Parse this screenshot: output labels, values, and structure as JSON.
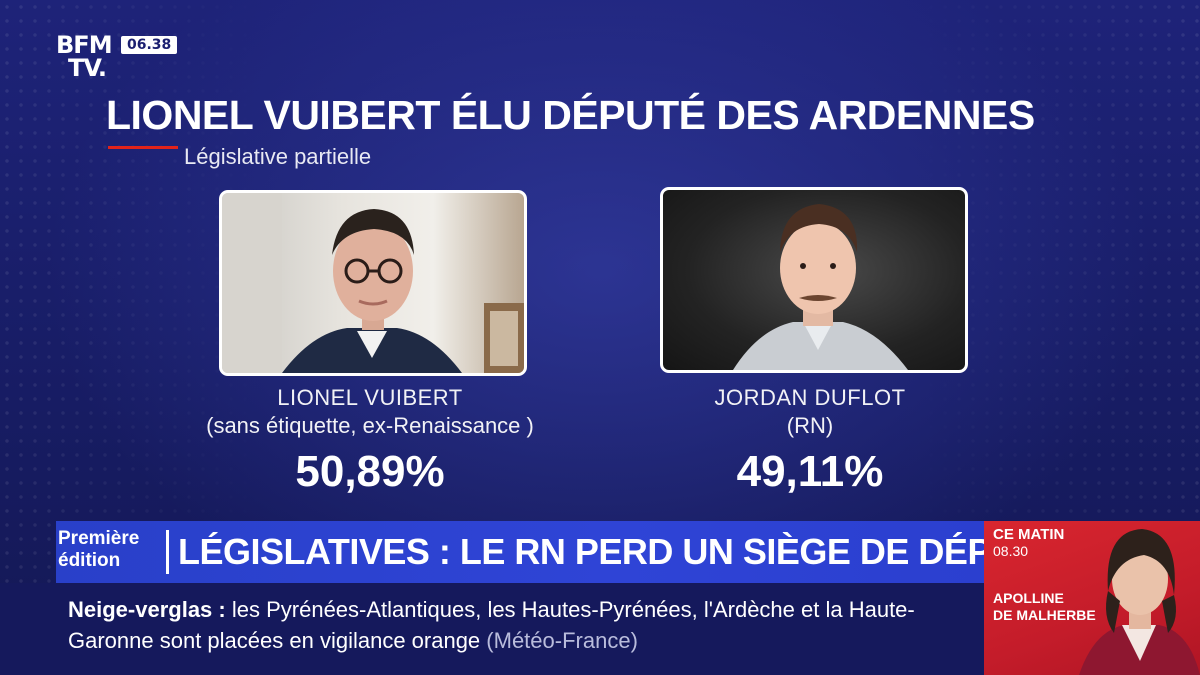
{
  "channel": {
    "logo_line1": "BFM",
    "logo_line2": "TV.",
    "time": "06.38"
  },
  "headline": "LIONEL VUIBERT ÉLU DÉPUTÉ DES ARDENNES",
  "subheadline": "Législative partielle",
  "candidates": [
    {
      "name": "LIONEL VUIBERT",
      "party": "(sans étiquette, ex-Renaissance )",
      "percent": "50,89%"
    },
    {
      "name": "JORDAN DUFLOT",
      "party": "(RN)",
      "percent": "49,11%"
    }
  ],
  "band": {
    "edition_line1": "Première",
    "edition_line2": "édition",
    "title": "LÉGISLATIVES : LE RN PERD UN SIÈGE DE DÉPUTÉ"
  },
  "ticker": {
    "key": "Neige-verglas",
    "separator": " : ",
    "text": "les Pyrénées-Atlantiques, les Hautes-Pyrénées, l'Ardèche et la Haute-Garonne sont placées en vigilance orange",
    "source": "(Météo-France)"
  },
  "promo": {
    "label": "CE MATIN",
    "time": "08.30",
    "name_line1": "APOLLINE",
    "name_line2": "DE MALHERBE"
  },
  "colors": {
    "background": "#1a1f6e",
    "band": "#2f44d6",
    "ticker": "#15195c",
    "promo": "#c41c2a",
    "accent": "#e2231a"
  }
}
